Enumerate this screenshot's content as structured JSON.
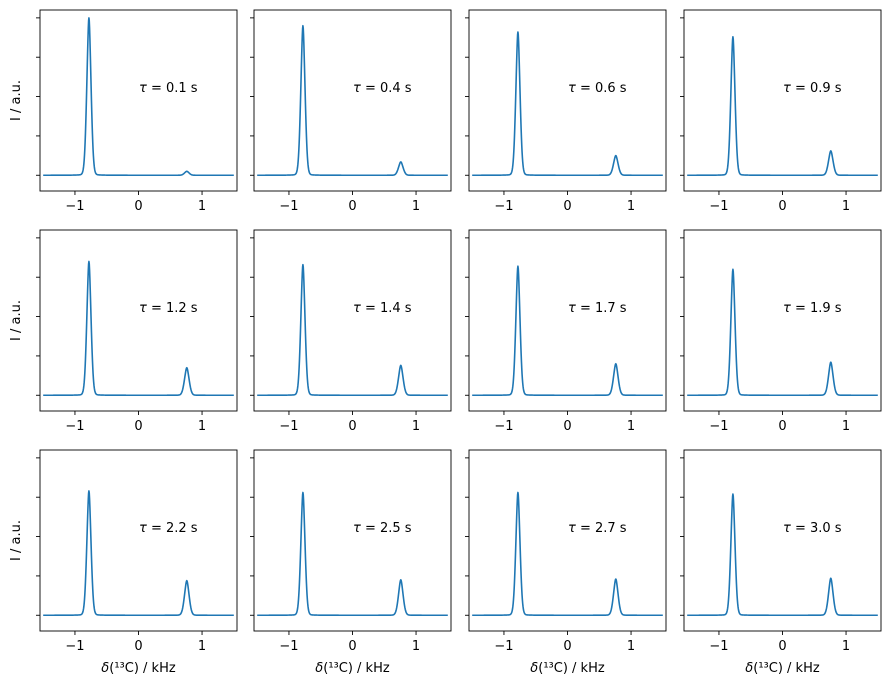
{
  "chart_data": {
    "type": "line",
    "layout": "3x4 grid of subplots",
    "shared_x_ticks": [
      "−1",
      "0",
      "1"
    ],
    "shared_xlim": [
      -1.55,
      1.55
    ],
    "shared_ylim": [
      -0.1,
      1.05
    ],
    "xlabel": "δ(¹³C) / kHz",
    "ylabel": "I / a.u.",
    "y_tick_labels_shown": false,
    "line_color": "#1f77b4",
    "peak_positions_khz": [
      -0.78,
      0.76
    ],
    "panels": [
      {
        "label": "τ = 0.1 s",
        "peak1_height": 1.0,
        "peak2_height": 0.025
      },
      {
        "label": "τ = 0.4 s",
        "peak1_height": 0.95,
        "peak2_height": 0.085
      },
      {
        "label": "τ = 0.6 s",
        "peak1_height": 0.91,
        "peak2_height": 0.125
      },
      {
        "label": "τ = 0.9 s",
        "peak1_height": 0.88,
        "peak2_height": 0.155
      },
      {
        "label": "τ = 1.2 s",
        "peak1_height": 0.85,
        "peak2_height": 0.175
      },
      {
        "label": "τ = 1.4 s",
        "peak1_height": 0.83,
        "peak2_height": 0.19
      },
      {
        "label": "τ = 1.7 s",
        "peak1_height": 0.82,
        "peak2_height": 0.2
      },
      {
        "label": "τ = 1.9 s",
        "peak1_height": 0.8,
        "peak2_height": 0.21
      },
      {
        "label": "τ = 2.2 s",
        "peak1_height": 0.79,
        "peak2_height": 0.22
      },
      {
        "label": "τ = 2.5 s",
        "peak1_height": 0.78,
        "peak2_height": 0.225
      },
      {
        "label": "τ = 2.7 s",
        "peak1_height": 0.78,
        "peak2_height": 0.23
      },
      {
        "label": "τ = 3.0 s",
        "peak1_height": 0.77,
        "peak2_height": 0.235
      }
    ]
  }
}
